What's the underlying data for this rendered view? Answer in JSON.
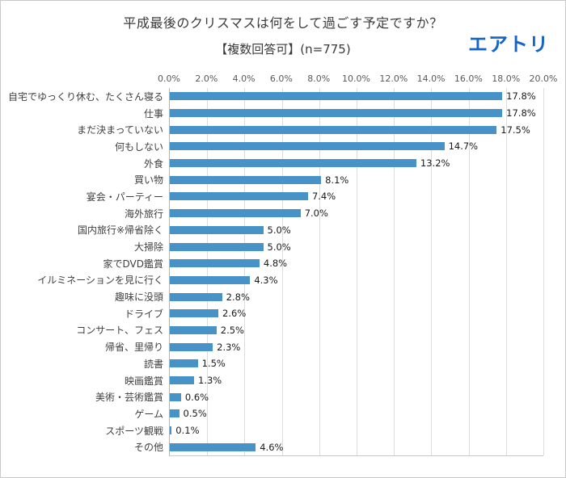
{
  "header": {
    "title": "平成最後のクリスマスは何をして過ごす予定ですか？",
    "subtitle": "【複数回答可】(n=775)",
    "logo": "エアトリ",
    "logo_color": "#1465c8"
  },
  "chart_data": {
    "type": "bar",
    "orientation": "horizontal",
    "title": "平成最後のクリスマスは何をして過ごす予定ですか？",
    "subtitle": "【複数回答可】(n=775)",
    "categories": [
      "自宅でゆっくり休む、たくさん寝る",
      "仕事",
      "まだ決まっていない",
      "何もしない",
      "外食",
      "買い物",
      "宴会・パーティー",
      "海外旅行",
      "国内旅行※帰省除く",
      "大掃除",
      "家でDVD鑑賞",
      "イルミネーションを見に行く",
      "趣味に没頭",
      "ドライブ",
      "コンサート、フェス",
      "帰省、里帰り",
      "読書",
      "映画鑑賞",
      "美術・芸術鑑賞",
      "ゲーム",
      "スポーツ観戦",
      "その他"
    ],
    "values": [
      17.8,
      17.8,
      17.5,
      14.7,
      13.2,
      8.1,
      7.4,
      7.0,
      5.0,
      5.0,
      4.8,
      4.3,
      2.8,
      2.6,
      2.5,
      2.3,
      1.5,
      1.3,
      0.6,
      0.5,
      0.1,
      4.6
    ],
    "value_labels": [
      "17.8%",
      "17.8%",
      "17.5%",
      "14.7%",
      "13.2%",
      "8.1%",
      "7.4%",
      "7.0%",
      "5.0%",
      "5.0%",
      "4.8%",
      "4.3%",
      "2.8%",
      "2.6%",
      "2.5%",
      "2.3%",
      "1.5%",
      "1.3%",
      "0.6%",
      "0.5%",
      "0.1%",
      "4.6%"
    ],
    "xlim": [
      0,
      20
    ],
    "x_ticks": [
      "0.0%",
      "2.0%",
      "4.0%",
      "6.0%",
      "8.0%",
      "10.0%",
      "12.0%",
      "14.0%",
      "16.0%",
      "18.0%",
      "20.0%"
    ],
    "bar_color": "#4792c6",
    "grid": true,
    "legend": "none"
  }
}
